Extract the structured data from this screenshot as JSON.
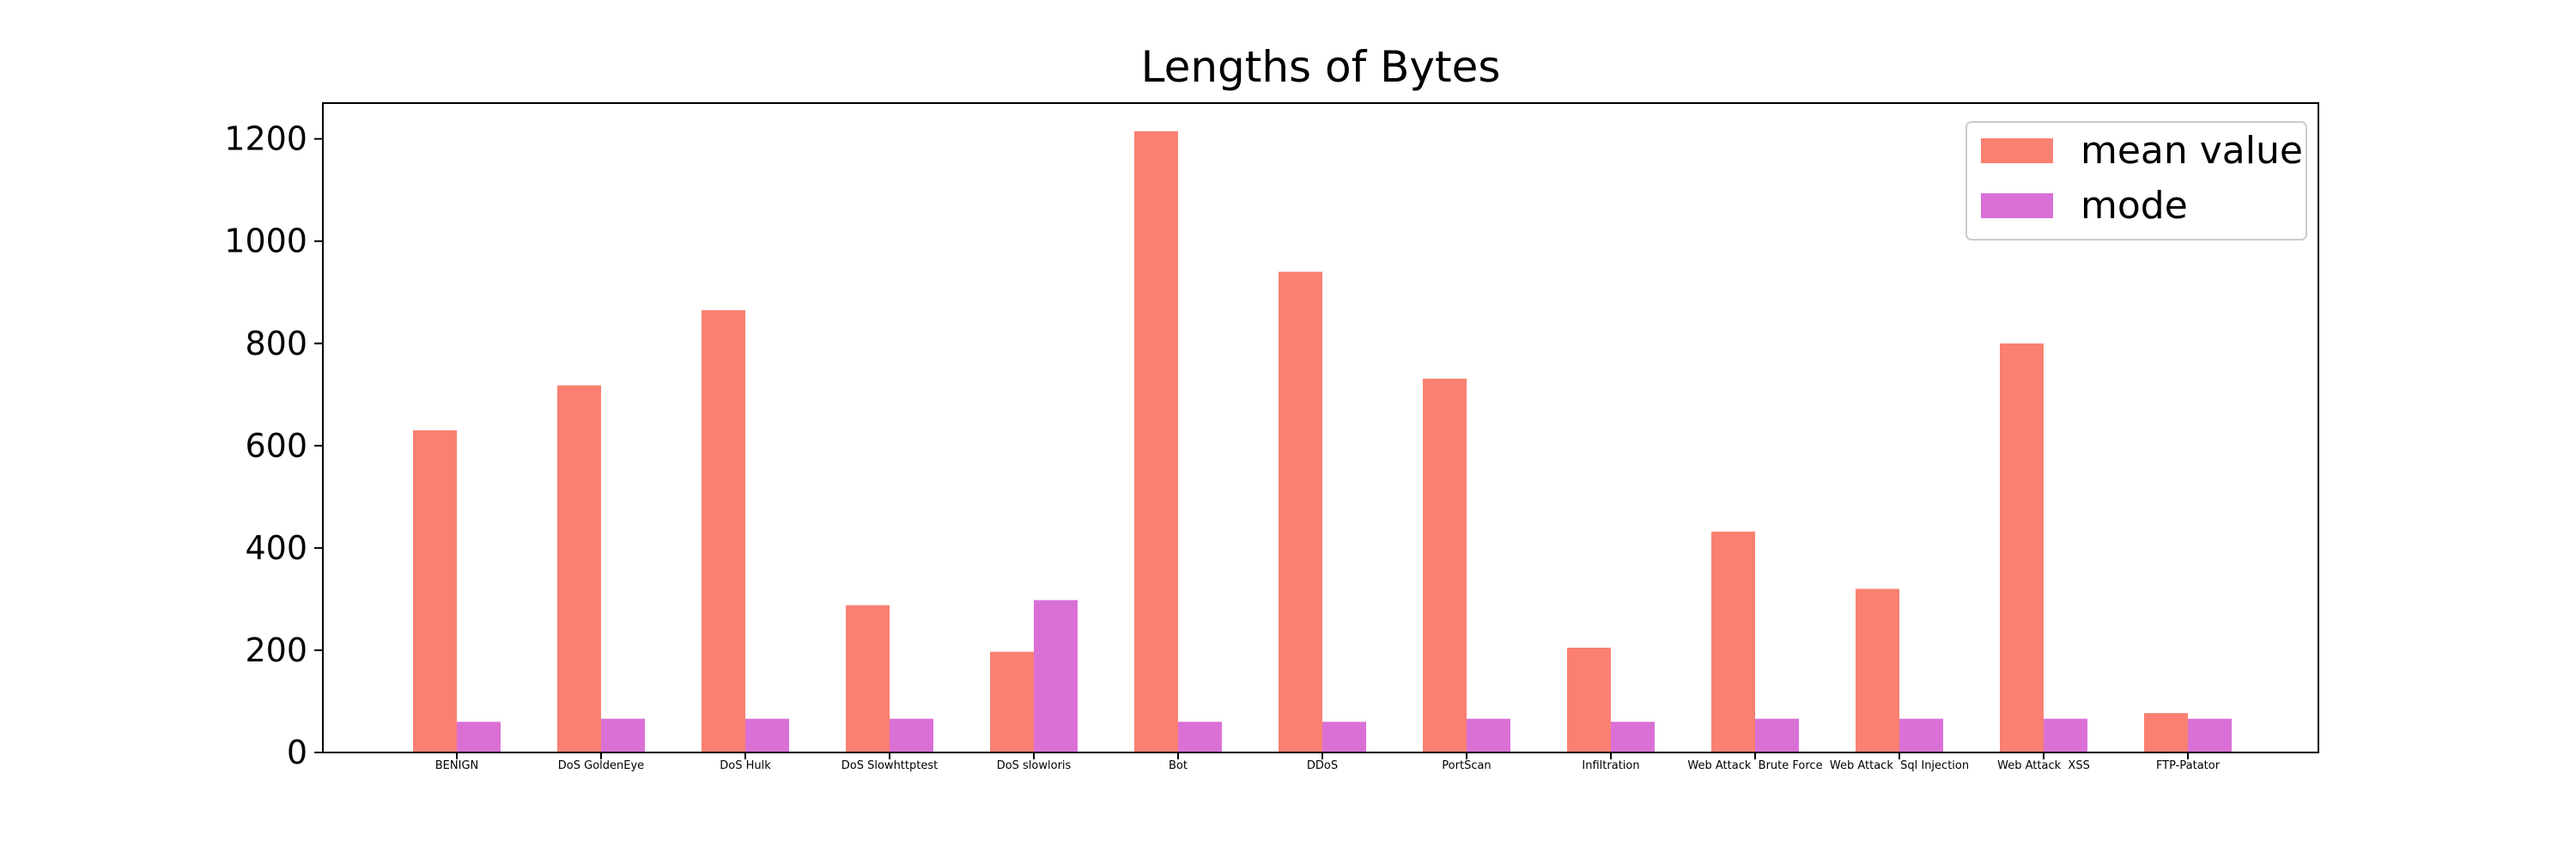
{
  "chart_data": {
    "type": "bar",
    "title": "Lengths of Bytes",
    "xlabel": "",
    "ylabel": "",
    "ylim": [
      0,
      1270
    ],
    "yticks": [
      0,
      200,
      400,
      600,
      800,
      1000,
      1200
    ],
    "grid": false,
    "legend_position": "top-right",
    "categories": [
      "BENIGN",
      "DoS GoldenEye",
      "DoS Hulk",
      "DoS Slowhttptest",
      "DoS slowloris",
      "Bot",
      "DDoS",
      "PortScan",
      "Infiltration",
      "Web Attack  Brute Force",
      "Web Attack  Sql Injection",
      "Web Attack  XSS",
      "FTP-Patator"
    ],
    "series": [
      {
        "name": "mean value",
        "color": "#FA8072",
        "values": [
          630,
          718,
          865,
          288,
          197,
          1215,
          940,
          731,
          205,
          432,
          320,
          800,
          77
        ]
      },
      {
        "name": "mode",
        "color": "#DA70D6",
        "values": [
          60,
          66,
          66,
          66,
          298,
          60,
          60,
          66,
          60,
          66,
          66,
          66,
          66
        ]
      }
    ]
  }
}
